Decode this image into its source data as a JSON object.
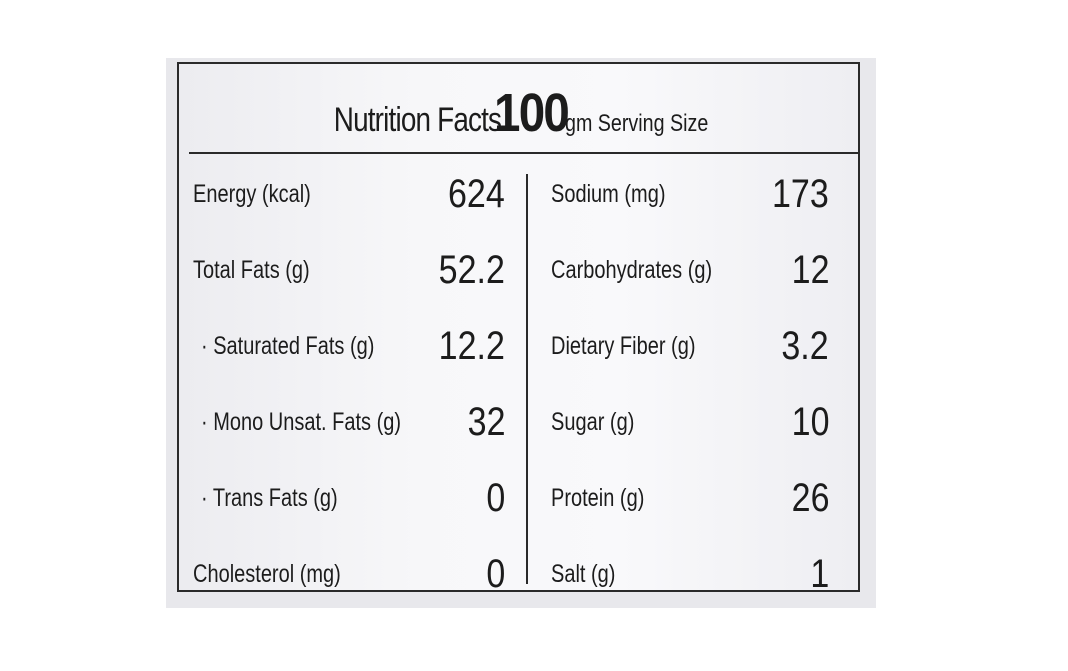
{
  "header": {
    "title": "Nutrition Facts",
    "serving_amount": "100",
    "serving_unit": "gm Serving Size"
  },
  "left_rows": [
    {
      "label": "Energy (kcal)",
      "value": "624"
    },
    {
      "label": "Total Fats (g)",
      "value": "52.2"
    },
    {
      "label": "· Saturated Fats (g)",
      "value": "12.2"
    },
    {
      "label": "· Mono Unsat. Fats (g)",
      "value": "32"
    },
    {
      "label": "· Trans Fats (g)",
      "value": "0"
    },
    {
      "label": "Cholesterol (mg)",
      "value": "0"
    }
  ],
  "right_rows": [
    {
      "label": "Sodium (mg)",
      "value": "173"
    },
    {
      "label": "Carbohydrates (g)",
      "value": "12"
    },
    {
      "label": "Dietary Fiber (g)",
      "value": "3.2"
    },
    {
      "label": "Sugar (g)",
      "value": "10"
    },
    {
      "label": "Protein (g)",
      "value": "26"
    },
    {
      "label": "Salt (g)",
      "value": "1"
    }
  ],
  "colors": {
    "ink": "#1c1c1c",
    "label_background": "#f7f7f9",
    "border": "#2a2a2a"
  }
}
